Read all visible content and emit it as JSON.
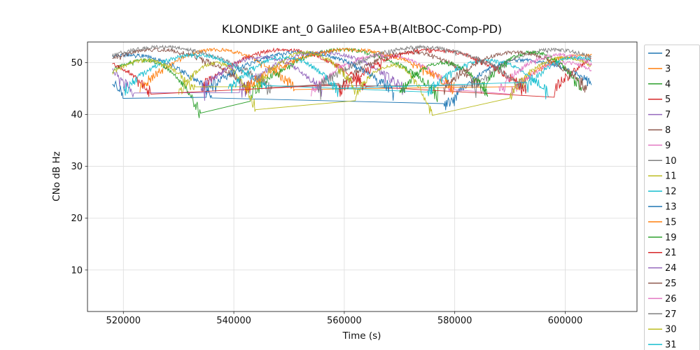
{
  "chart_data": {
    "type": "line",
    "title": "KLONDIKE ant_0 Galileo E5A+B(AltBOC-Comp-PD)",
    "xlabel": "Time (s)",
    "ylabel": "CNo dB Hz",
    "xlim": [
      513500,
      613000
    ],
    "ylim": [
      2,
      54
    ],
    "xticks": [
      520000,
      540000,
      560000,
      580000,
      600000
    ],
    "yticks": [
      10,
      20,
      30,
      40,
      50
    ],
    "grid": true,
    "legend_position": "outside-right",
    "t_range": [
      518000,
      604800
    ],
    "arc_format": "[center_time_s, halfwidth_s, peak_cno_dbhz, edge_left_cno, edge_right_cno]",
    "noise_band_dbhz": 1.0,
    "series": [
      {
        "name": "2",
        "color": "#1f77b4",
        "arcs": [
          [
            521000,
            15000,
            51.5,
            44,
            44
          ],
          [
            592000,
            14000,
            50.5,
            41,
            45
          ]
        ]
      },
      {
        "name": "3",
        "color": "#ff7f0e",
        "arcs": [
          [
            537000,
            14000,
            52.5,
            45,
            45
          ],
          [
            603000,
            12000,
            51.5,
            45,
            45
          ]
        ]
      },
      {
        "name": "4",
        "color": "#2ca02c",
        "arcs": [
          [
            524000,
            10000,
            50.5,
            45,
            40
          ],
          [
            560000,
            17000,
            52.5,
            44,
            44
          ]
        ]
      },
      {
        "name": "5",
        "color": "#d62728",
        "arcs": [
          [
            549000,
            15000,
            52.5,
            45,
            45
          ],
          [
            610000,
            12000,
            52.0,
            45,
            45
          ]
        ]
      },
      {
        "name": "7",
        "color": "#9467bd",
        "arcs": [
          [
            512000,
            10000,
            51.0,
            44,
            44
          ],
          [
            556000,
            15000,
            52.0,
            44.5,
            44.5
          ]
        ]
      },
      {
        "name": "8",
        "color": "#8c564b",
        "arcs": [
          [
            526000,
            17000,
            52.5,
            45,
            45
          ],
          [
            572000,
            13000,
            52.0,
            45,
            45
          ]
        ]
      },
      {
        "name": "9",
        "color": "#e377c2",
        "arcs": [
          [
            567000,
            13000,
            51.5,
            44.5,
            44.5
          ],
          [
            600000,
            10000,
            50.0,
            44,
            44
          ]
        ]
      },
      {
        "name": "10",
        "color": "#7f7f7f",
        "arcs": [
          [
            527000,
            20000,
            53.0,
            45,
            45
          ],
          [
            598000,
            15000,
            52.5,
            45,
            45
          ]
        ]
      },
      {
        "name": "11",
        "color": "#bcbd22",
        "arcs": [
          [
            537000,
            7000,
            50.0,
            44,
            41
          ],
          [
            569000,
            7000,
            49.5,
            44,
            39.5
          ],
          [
            600000,
            10000,
            51.0,
            44,
            44
          ]
        ]
      },
      {
        "name": "12",
        "color": "#17becf",
        "arcs": [
          [
            533000,
            13000,
            51.5,
            44.5,
            44.5
          ],
          [
            586000,
            11000,
            50.5,
            44,
            44
          ]
        ]
      },
      {
        "name": "13",
        "color": "#1f77b4",
        "arcs": [
          [
            508000,
            12000,
            51.0,
            44,
            44
          ],
          [
            552000,
            17000,
            52.0,
            44.5,
            44.5
          ]
        ]
      },
      {
        "name": "15",
        "color": "#ff7f0e",
        "arcs": [
          [
            561000,
            19000,
            52.5,
            45,
            45
          ]
        ]
      },
      {
        "name": "19",
        "color": "#2ca02c",
        "arcs": [
          [
            578000,
            8000,
            50.0,
            44,
            44
          ],
          [
            594000,
            9000,
            52.0,
            45,
            45
          ]
        ]
      },
      {
        "name": "21",
        "color": "#d62728",
        "arcs": [
          [
            516000,
            9000,
            50.0,
            44,
            44
          ],
          [
            576000,
            17000,
            52.5,
            44.5,
            44.5
          ]
        ]
      },
      {
        "name": "24",
        "color": "#9467bd",
        "arcs": [
          [
            545000,
            11000,
            51.0,
            44.5,
            44.5
          ]
        ]
      },
      {
        "name": "25",
        "color": "#8c564b",
        "arcs": [
          [
            591000,
            13000,
            52.0,
            45,
            45
          ]
        ]
      },
      {
        "name": "26",
        "color": "#e377c2",
        "arcs": [
          [
            599000,
            11000,
            51.5,
            45,
            45
          ]
        ]
      },
      {
        "name": "27",
        "color": "#7f7f7f",
        "arcs": [
          [
            574000,
            19000,
            53.0,
            45,
            45
          ]
        ]
      },
      {
        "name": "30",
        "color": "#bcbd22",
        "arcs": [
          [
            524000,
            9000,
            50.5,
            44.5,
            44.5
          ],
          [
            553000,
            9000,
            52.0,
            45,
            45
          ]
        ]
      },
      {
        "name": "31",
        "color": "#17becf",
        "arcs": [
          [
            549000,
            10000,
            51.0,
            44.5,
            44.5
          ],
          [
            602000,
            9000,
            51.0,
            45,
            45
          ]
        ]
      }
    ]
  }
}
